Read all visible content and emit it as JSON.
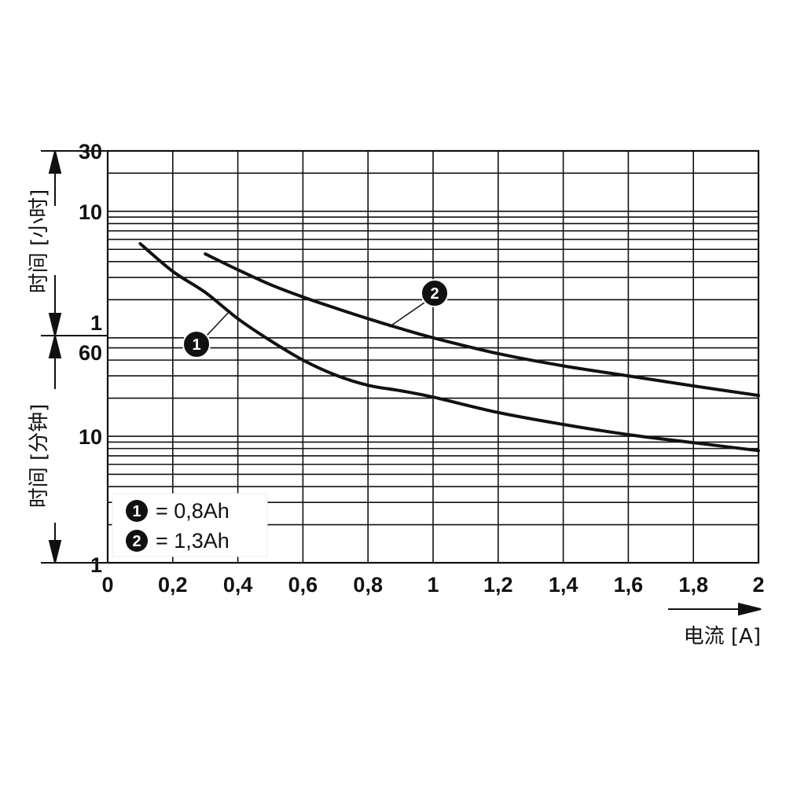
{
  "chart_data": {
    "type": "line",
    "title": "",
    "xlabel": "电流 [A]",
    "ylabel_hours": "时间 [小时]",
    "ylabel_minutes": "时间 [分钟]",
    "xlim": [
      0,
      2
    ],
    "x_ticks": [
      "0",
      "0,2",
      "0,4",
      "0,6",
      "0,8",
      "1",
      "1,2",
      "1,4",
      "1,6",
      "1,8",
      "2"
    ],
    "y_scale": "log",
    "y_unit": "minutes",
    "ylim_minutes": [
      1,
      1800
    ],
    "y_tick_labels": [
      {
        "label": "30",
        "minutes": 1800
      },
      {
        "label": "10",
        "minutes": 600
      },
      {
        "label": "1",
        "minutes": 60,
        "section": "hours"
      },
      {
        "label": "60",
        "minutes": 60,
        "section": "minutes"
      },
      {
        "label": "10",
        "minutes": 10
      },
      {
        "label": "1",
        "minutes": 1
      }
    ],
    "grid": true,
    "legend_position": "bottom-left",
    "series": [
      {
        "name": "1",
        "legend": "= 0,8Ah",
        "x": [
          0.1,
          0.2,
          0.3,
          0.4,
          0.5,
          0.6,
          0.7,
          0.8,
          0.9,
          1.0,
          1.2,
          1.4,
          1.6,
          1.8,
          2.0
        ],
        "minutes": [
          333,
          201,
          137,
          85,
          57,
          40,
          30.5,
          25.3,
          22.9,
          20.4,
          15.4,
          12.4,
          10.3,
          8.9,
          7.7
        ]
      },
      {
        "name": "2",
        "legend": "= 1,3Ah",
        "x": [
          0.3,
          0.4,
          0.5,
          0.6,
          0.7,
          0.8,
          0.9,
          1.0,
          1.2,
          1.4,
          1.6,
          1.8,
          2.0
        ],
        "minutes": [
          276,
          207,
          158,
          126,
          103,
          85,
          71,
          60,
          45,
          36,
          30,
          25,
          21
        ]
      }
    ]
  }
}
